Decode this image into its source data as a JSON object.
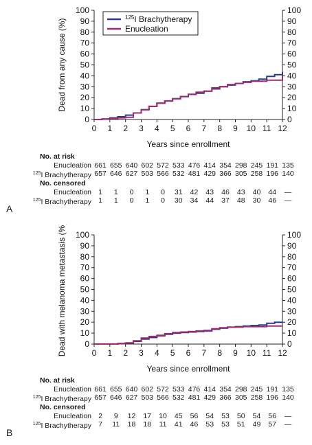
{
  "colors": {
    "brachy": "#2b3a8f",
    "enucl": "#9c2a6e",
    "axis": "#222222"
  },
  "chart_data": [
    {
      "type": "line",
      "panel": "A",
      "ylabel": "Dead from any cause (%)",
      "xlabel": "Years since enrollment",
      "xlim": [
        0,
        12
      ],
      "ylim": [
        0,
        100
      ],
      "xticks": [
        0,
        1,
        2,
        3,
        4,
        5,
        6,
        7,
        8,
        9,
        10,
        11,
        12
      ],
      "yticks": [
        0,
        10,
        20,
        30,
        40,
        50,
        60,
        70,
        80,
        90,
        100
      ],
      "legend_position": "top-left",
      "series": [
        {
          "name": "Brachytherapy",
          "name_sup": "125",
          "name_prefix": "I ",
          "x": [
            0,
            0.5,
            1,
            1.5,
            2,
            2.5,
            3,
            3.5,
            4,
            4.5,
            5,
            5.5,
            6,
            6.5,
            7,
            7.5,
            8,
            8.5,
            9,
            9.5,
            10,
            10.5,
            11,
            11.5,
            12
          ],
          "y": [
            0,
            0.5,
            1.5,
            2.5,
            4,
            6,
            9,
            12,
            15,
            17,
            19,
            21,
            23,
            24,
            26,
            28,
            30,
            31.5,
            33,
            34.5,
            35.5,
            37,
            39.5,
            41,
            43.5
          ]
        },
        {
          "name": "Enucleation",
          "x": [
            0,
            0.5,
            1,
            1.5,
            2,
            2.5,
            3,
            3.5,
            4,
            4.5,
            5,
            5.5,
            6,
            6.5,
            7,
            7.5,
            8,
            8.5,
            9,
            9.5,
            10,
            10.5,
            11,
            11.5,
            12
          ],
          "y": [
            0,
            0.5,
            1,
            1.5,
            2,
            6,
            9,
            12,
            15,
            17,
            19,
            21,
            23,
            25,
            26,
            29,
            30,
            32,
            33,
            34,
            35,
            35,
            36,
            36,
            40
          ]
        }
      ],
      "risk_table": {
        "header_at_risk": "No. at risk",
        "header_censored": "No. censored",
        "at_risk": [
          {
            "label": "Enucleation",
            "values": [
              "661",
              "655",
              "640",
              "602",
              "572",
              "533",
              "476",
              "414",
              "354",
              "298",
              "245",
              "191",
              "135"
            ]
          },
          {
            "label_sup": "125",
            "label": "I Brachytherapy",
            "values": [
              "657",
              "646",
              "627",
              "503",
              "566",
              "532",
              "481",
              "429",
              "366",
              "305",
              "258",
              "196",
              "140"
            ]
          }
        ],
        "censored": [
          {
            "label": "Enucleation",
            "values": [
              "1",
              "1",
              "0",
              "1",
              "0",
              "31",
              "42",
              "43",
              "46",
              "43",
              "40",
              "44",
              "—"
            ]
          },
          {
            "label_sup": "125",
            "label": "I Brachytherapy",
            "values": [
              "1",
              "1",
              "0",
              "1",
              "0",
              "30",
              "34",
              "44",
              "37",
              "48",
              "30",
              "46",
              "—"
            ]
          }
        ]
      }
    },
    {
      "type": "line",
      "panel": "B",
      "ylabel": "Dead with melanoma metastasis (%)",
      "xlabel": "Years since enrollment",
      "xlim": [
        0,
        12
      ],
      "ylim": [
        0,
        100
      ],
      "xticks": [
        0,
        1,
        2,
        3,
        4,
        5,
        6,
        7,
        8,
        9,
        10,
        11,
        12
      ],
      "yticks": [
        0,
        10,
        20,
        30,
        40,
        50,
        60,
        70,
        80,
        90,
        100
      ],
      "series": [
        {
          "name": "Brachytherapy",
          "x": [
            0,
            0.5,
            1,
            1.5,
            2,
            2.5,
            3,
            3.5,
            4,
            4.5,
            5,
            5.5,
            6,
            6.5,
            7,
            7.5,
            8,
            8.5,
            9,
            9.5,
            10,
            10.5,
            11,
            11.5,
            12
          ],
          "y": [
            0,
            0,
            0,
            0.5,
            1,
            2.5,
            4.5,
            6,
            7.5,
            9,
            10,
            10.5,
            11,
            11.5,
            12,
            13.5,
            14.5,
            15.5,
            16,
            16.5,
            17,
            17.5,
            19,
            20,
            20
          ]
        },
        {
          "name": "Enucleation",
          "x": [
            0,
            0.5,
            1,
            1.5,
            2,
            2.5,
            3,
            3.5,
            4,
            4.5,
            5,
            5.5,
            6,
            6.5,
            7,
            7.5,
            8,
            8.5,
            9,
            9.5,
            10,
            10.5,
            11,
            11.5,
            12
          ],
          "y": [
            0,
            0,
            0,
            0.5,
            1,
            3,
            5.5,
            7,
            8,
            9.5,
            10.5,
            11,
            11.5,
            12,
            12.5,
            14,
            15,
            15.5,
            15.5,
            16,
            16,
            16,
            16.5,
            16.5,
            16.5
          ]
        }
      ],
      "risk_table": {
        "header_at_risk": "No. at risk",
        "header_censored": "No. censored",
        "at_risk": [
          {
            "label": "Enucleation",
            "values": [
              "661",
              "655",
              "640",
              "602",
              "572",
              "533",
              "476",
              "414",
              "354",
              "298",
              "245",
              "191",
              "135"
            ]
          },
          {
            "label_sup": "125",
            "label": "I Brachytherapy",
            "values": [
              "657",
              "646",
              "627",
              "503",
              "566",
              "532",
              "481",
              "429",
              "366",
              "305",
              "258",
              "196",
              "140"
            ]
          }
        ],
        "censored": [
          {
            "label": "Enucleation",
            "values": [
              "2",
              "9",
              "12",
              "17",
              "10",
              "45",
              "56",
              "54",
              "53",
              "50",
              "54",
              "56",
              "—"
            ]
          },
          {
            "label_sup": "125",
            "label": "I Brachytherapy",
            "values": [
              "7",
              "11",
              "18",
              "18",
              "11",
              "41",
              "46",
              "53",
              "53",
              "51",
              "49",
              "57",
              "—"
            ]
          }
        ]
      }
    }
  ]
}
